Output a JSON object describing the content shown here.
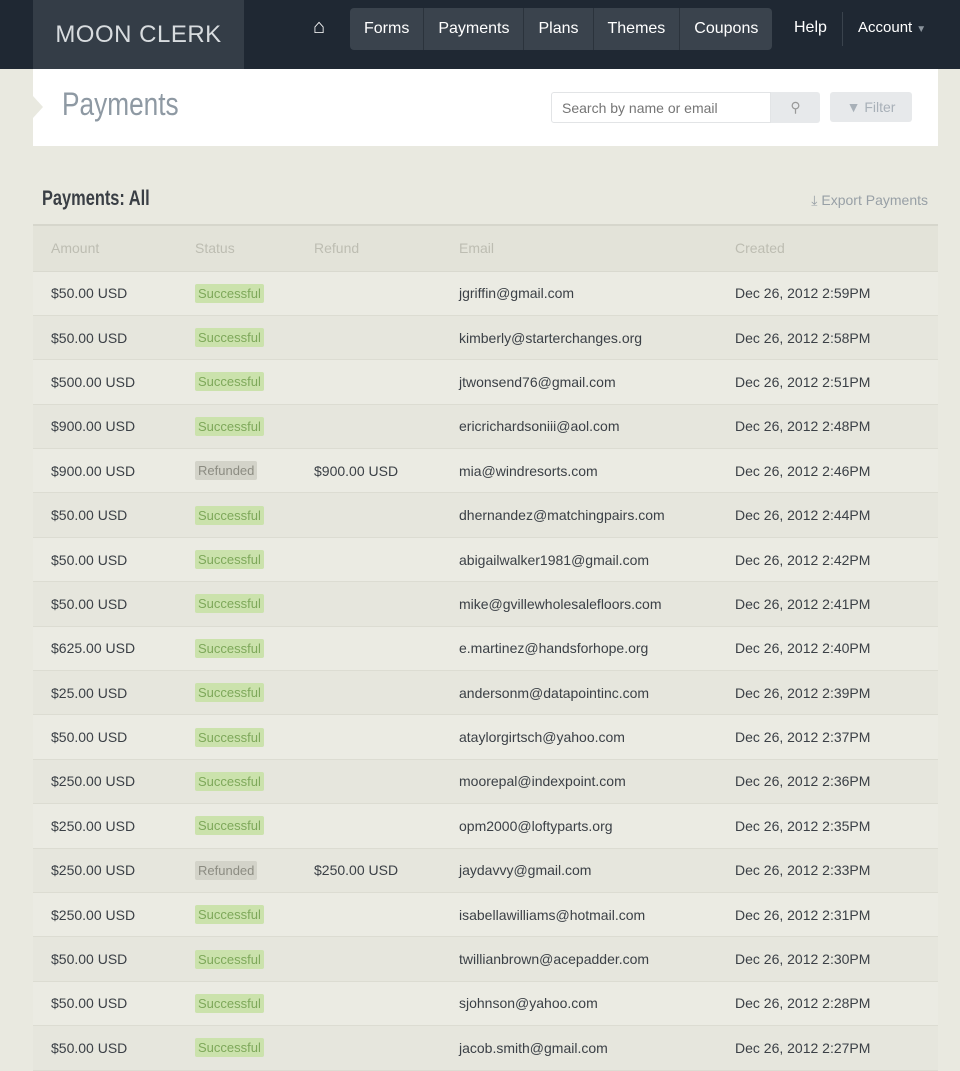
{
  "nav": {
    "logo": "MOON CLERK",
    "items": [
      "Forms",
      "Payments",
      "Plans",
      "Themes",
      "Coupons"
    ],
    "help": "Help",
    "account": "Account"
  },
  "header": {
    "title": "Payments",
    "search_placeholder": "Search by name or email",
    "filter": "Filter"
  },
  "section": {
    "title": "Payments: All",
    "export": "Export Payments"
  },
  "table": {
    "columns": [
      "Amount",
      "Status",
      "Refund",
      "Email",
      "Created"
    ],
    "rows": [
      [
        "$50.00 USD",
        "Successful",
        "",
        "jgriffin@gmail.com",
        "Dec 26, 2012 2:59PM"
      ],
      [
        "$50.00 USD",
        "Successful",
        "",
        "kimberly@starterchanges.org",
        "Dec 26, 2012 2:58PM"
      ],
      [
        "$500.00 USD",
        "Successful",
        "",
        "jtwonsend76@gmail.com",
        "Dec 26, 2012 2:51PM"
      ],
      [
        "$900.00 USD",
        "Successful",
        "",
        "ericrichardsoniii@aol.com",
        "Dec 26, 2012 2:48PM"
      ],
      [
        "$900.00 USD",
        "Refunded",
        "$900.00 USD",
        "mia@windresorts.com",
        "Dec 26, 2012 2:46PM"
      ],
      [
        "$50.00 USD",
        "Successful",
        "",
        "dhernandez@matchingpairs.com",
        "Dec 26, 2012 2:44PM"
      ],
      [
        "$50.00 USD",
        "Successful",
        "",
        "abigailwalker1981@gmail.com",
        "Dec 26, 2012 2:42PM"
      ],
      [
        "$50.00 USD",
        "Successful",
        "",
        "mike@gvillewholesalefloors.com",
        "Dec 26, 2012 2:41PM"
      ],
      [
        "$625.00 USD",
        "Successful",
        "",
        "e.martinez@handsforhope.org",
        "Dec 26, 2012 2:40PM"
      ],
      [
        "$25.00 USD",
        "Successful",
        "",
        "andersonm@datapointinc.com",
        "Dec 26, 2012 2:39PM"
      ],
      [
        "$50.00 USD",
        "Successful",
        "",
        "ataylorgirtsch@yahoo.com",
        "Dec 26, 2012 2:37PM"
      ],
      [
        "$250.00 USD",
        "Successful",
        "",
        "moorepal@indexpoint.com",
        "Dec 26, 2012 2:36PM"
      ],
      [
        "$250.00 USD",
        "Successful",
        "",
        "opm2000@loftyparts.org",
        "Dec 26, 2012 2:35PM"
      ],
      [
        "$250.00 USD",
        "Refunded",
        "$250.00 USD",
        "jaydavvy@gmail.com",
        "Dec 26, 2012 2:33PM"
      ],
      [
        "$250.00 USD",
        "Successful",
        "",
        "isabellawilliams@hotmail.com",
        "Dec 26, 2012 2:31PM"
      ],
      [
        "$50.00 USD",
        "Successful",
        "",
        "twillianbrown@acepadder.com",
        "Dec 26, 2012 2:30PM"
      ],
      [
        "$50.00 USD",
        "Successful",
        "",
        "sjohnson@yahoo.com",
        "Dec 26, 2012 2:28PM"
      ],
      [
        "$50.00 USD",
        "Successful",
        "",
        "jacob.smith@gmail.com",
        "Dec 26, 2012 2:27PM"
      ]
    ]
  },
  "colors": {
    "nav": "#1f2833",
    "success": "#cbe2ac",
    "refunded": "#d3d3c9"
  }
}
